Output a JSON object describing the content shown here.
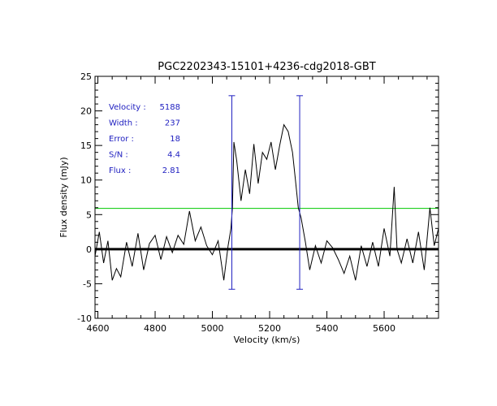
{
  "chart_data": {
    "type": "line",
    "title": "PGC2202343-15101+4236-cdg2018-GBT",
    "xlabel": "Velocity (km/s)",
    "ylabel": "Flux density (mJy)",
    "xlim": [
      4590,
      5790
    ],
    "ylim": [
      -10,
      25
    ],
    "x_ticks": [
      "4600",
      "4800",
      "5000",
      "5200",
      "5400",
      "5600"
    ],
    "x_tick_values": [
      4600,
      4800,
      5000,
      5200,
      5400,
      5600
    ],
    "y_ticks": [
      "-10",
      "-5",
      "0",
      "5",
      "10",
      "15",
      "20",
      "25"
    ],
    "y_tick_values": [
      -10,
      -5,
      0,
      5,
      10,
      15,
      20,
      25
    ],
    "grid": false,
    "annotations": [
      {
        "label": "Velocity :",
        "value": "5188"
      },
      {
        "label": "Width :",
        "value": "237"
      },
      {
        "label": "Error :",
        "value": "18"
      },
      {
        "label": "S/N :",
        "value": "4.4"
      },
      {
        "label": "Flux :",
        "value": "2.81"
      }
    ],
    "reference_lines": {
      "zero_level": 0,
      "threshold_level": 5.9,
      "window_edges_velocity": [
        5068,
        5305
      ],
      "window_edge_extent": [
        -5.8,
        22.2
      ]
    },
    "spectrum": {
      "x": [
        4590,
        4605,
        4620,
        4635,
        4650,
        4665,
        4680,
        4700,
        4720,
        4740,
        4760,
        4780,
        4800,
        4820,
        4840,
        4860,
        4880,
        4900,
        4920,
        4940,
        4960,
        4980,
        5000,
        5020,
        5040,
        5055,
        5065,
        5070,
        5075,
        5085,
        5100,
        5115,
        5130,
        5145,
        5160,
        5175,
        5190,
        5205,
        5220,
        5235,
        5250,
        5265,
        5280,
        5290,
        5300,
        5310,
        5325,
        5340,
        5360,
        5380,
        5400,
        5420,
        5440,
        5460,
        5480,
        5500,
        5520,
        5540,
        5560,
        5580,
        5600,
        5620,
        5635,
        5645,
        5660,
        5680,
        5700,
        5720,
        5740,
        5760,
        5775,
        5790
      ],
      "y": [
        -1.0,
        2.5,
        -2.0,
        1.2,
        -4.5,
        -2.8,
        -4.0,
        1.0,
        -2.5,
        2.3,
        -3.0,
        0.8,
        2.0,
        -1.5,
        1.8,
        -0.5,
        2.0,
        0.7,
        5.5,
        1.2,
        3.2,
        0.5,
        -0.8,
        1.2,
        -4.5,
        0.5,
        3.0,
        6.0,
        15.5,
        12.8,
        7.0,
        11.5,
        8.0,
        15.2,
        9.5,
        14.0,
        13.0,
        15.5,
        11.5,
        15.0,
        18.0,
        17.0,
        14.0,
        10.0,
        6.0,
        4.5,
        1.0,
        -3.0,
        0.5,
        -2.0,
        1.2,
        0.2,
        -1.5,
        -3.5,
        -1.0,
        -4.5,
        0.5,
        -2.5,
        1.0,
        -2.5,
        3.0,
        -1.0,
        9.0,
        0.0,
        -2.0,
        1.5,
        -2.0,
        2.5,
        -3.0,
        6.0,
        0.5,
        3.0
      ]
    },
    "colors": {
      "spectrum": "#000000",
      "zero_line": "#000000",
      "threshold_line": "#00c800",
      "window_edges": "#2020c0",
      "annotation_text": "#2020c0",
      "axis": "#000000"
    }
  }
}
